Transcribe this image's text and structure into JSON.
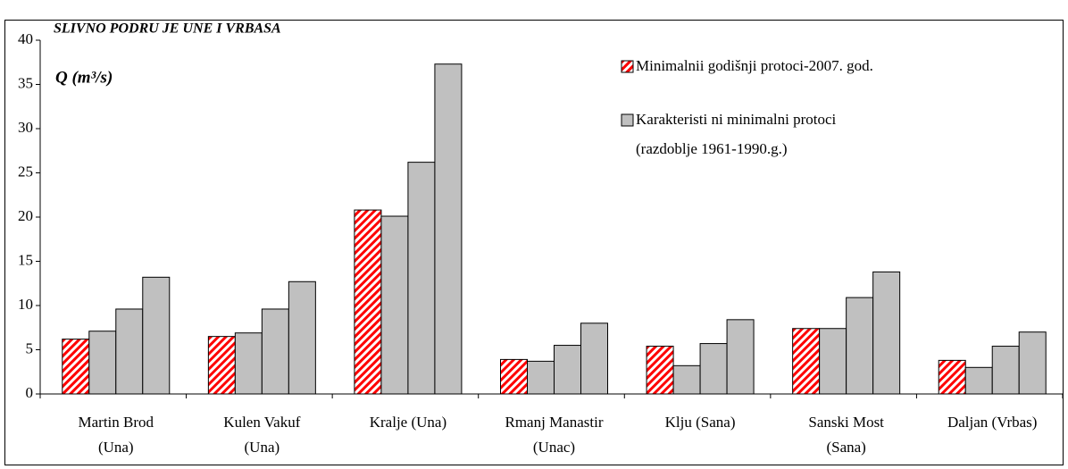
{
  "chart_data": {
    "type": "bar",
    "title": "SLIVNO PODRU JE UNE I VRBASA",
    "y_label": "Q (m³/s)",
    "categories": [
      [
        "Martin Brod",
        "(Una)"
      ],
      [
        "Kulen Vakuf",
        "(Una)"
      ],
      [
        "Kralje (Una)"
      ],
      [
        "Rmanj Manastir",
        "(Unac)"
      ],
      [
        "Klju   (Sana)"
      ],
      [
        "Sanski Most",
        "(Sana)"
      ],
      [
        "Daljan (Vrbas)"
      ]
    ],
    "series": [
      {
        "name": "Minimalnii godišnji protoci-2007. god.",
        "color": "#ff0000",
        "hatch": true,
        "values": [
          6.2,
          6.5,
          20.8,
          3.9,
          5.4,
          7.4,
          3.8
        ]
      },
      {
        "name": "Karakteristi ni minimalni protoci",
        "legend_note": "(razdoblje 1961-1990.g.)",
        "color": "#c0c0c0",
        "values": [
          7.1,
          6.9,
          20.1,
          3.7,
          3.2,
          7.4,
          3.0
        ]
      },
      {
        "color": "#c0c0c0",
        "values": [
          9.6,
          9.6,
          26.2,
          5.5,
          5.7,
          10.9,
          5.4
        ]
      },
      {
        "color": "#c0c0c0",
        "values": [
          13.2,
          12.7,
          37.3,
          8.0,
          8.4,
          13.8,
          7.0
        ]
      }
    ],
    "ylim": [
      0,
      40
    ],
    "yticks": [
      0,
      5,
      10,
      15,
      20,
      25,
      30,
      35,
      40
    ],
    "grid": false
  }
}
